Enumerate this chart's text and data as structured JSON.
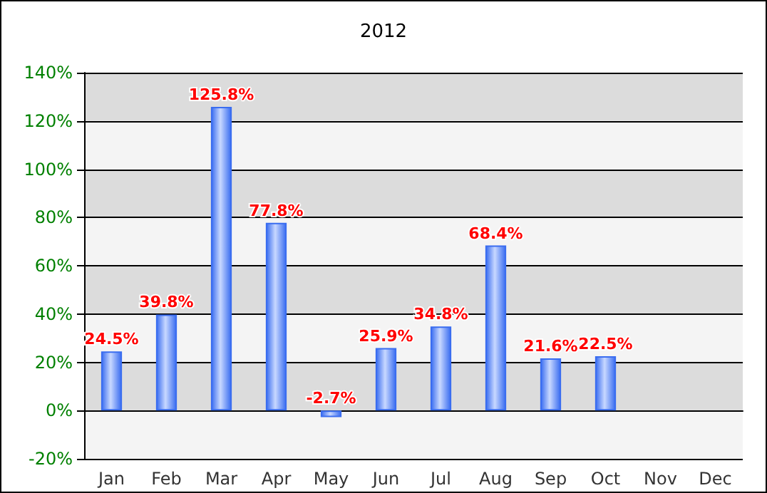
{
  "chart_data": {
    "type": "bar",
    "title": "2012",
    "categories": [
      "Jan",
      "Feb",
      "Mar",
      "Apr",
      "May",
      "Jun",
      "Jul",
      "Aug",
      "Sep",
      "Oct",
      "Nov",
      "Dec"
    ],
    "values": [
      24.5,
      39.8,
      125.8,
      77.8,
      -2.7,
      25.9,
      34.8,
      68.4,
      21.6,
      22.5,
      null,
      null
    ],
    "value_labels": [
      "24.5%",
      "39.8%",
      "125.8%",
      "77.8%",
      "-2.7%",
      "25.9%",
      "34.8%",
      "68.4%",
      "21.6%",
      "22.5%",
      null,
      null
    ],
    "color": "#3a6df0",
    "ylim": [
      -20,
      140
    ],
    "yticks": [
      {
        "value": -20,
        "label": "-20%"
      },
      {
        "value": 0,
        "label": "0%"
      },
      {
        "value": 20,
        "label": "20%"
      },
      {
        "value": 40,
        "label": "40%"
      },
      {
        "value": 60,
        "label": "60%"
      },
      {
        "value": 80,
        "label": "80%"
      },
      {
        "value": 100,
        "label": "100%"
      },
      {
        "value": 120,
        "label": "120%"
      },
      {
        "value": 140,
        "label": "140%"
      }
    ],
    "grid": "y"
  }
}
